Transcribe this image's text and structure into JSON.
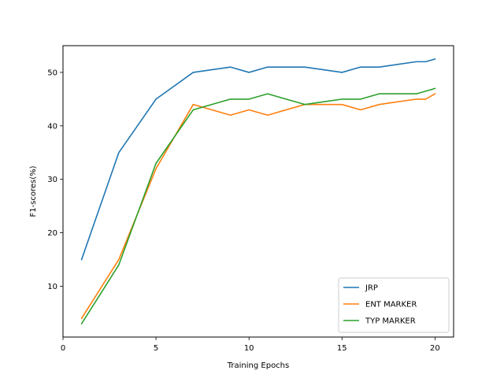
{
  "chart_data": {
    "type": "line",
    "title": "",
    "xlabel": "Training Epochs",
    "ylabel": "F1-scores(%)",
    "xlim": [
      0,
      21
    ],
    "ylim": [
      0.5,
      55
    ],
    "x_ticks": [
      0,
      5,
      10,
      15,
      20
    ],
    "y_ticks": [
      10,
      20,
      30,
      40,
      50
    ],
    "grid": false,
    "legend_position": "lower-right",
    "series": [
      {
        "name": "JRP",
        "color": "#1f77b4",
        "x": [
          1,
          3,
          5,
          7,
          9,
          10,
          11,
          13,
          15,
          16,
          17,
          19,
          19.5,
          20
        ],
        "y": [
          15,
          35,
          45,
          50,
          51,
          50,
          51,
          51,
          50,
          51,
          51,
          52,
          52,
          52.5
        ]
      },
      {
        "name": "ENT MARKER",
        "color": "#ff7f0e",
        "x": [
          1,
          3,
          5,
          7,
          9,
          10,
          11,
          13,
          15,
          16,
          17,
          19,
          19.5,
          20
        ],
        "y": [
          4,
          15,
          32,
          44,
          42,
          43,
          42,
          44,
          44,
          43,
          44,
          45,
          45,
          46
        ]
      },
      {
        "name": "TYP MARKER",
        "color": "#2ca02c",
        "x": [
          1,
          3,
          5,
          7,
          9,
          10,
          11,
          13,
          15,
          16,
          17,
          19,
          19.5,
          20
        ],
        "y": [
          3,
          14,
          33,
          43,
          45,
          45,
          46,
          44,
          45,
          45,
          46,
          46,
          46.5,
          47
        ]
      }
    ]
  }
}
